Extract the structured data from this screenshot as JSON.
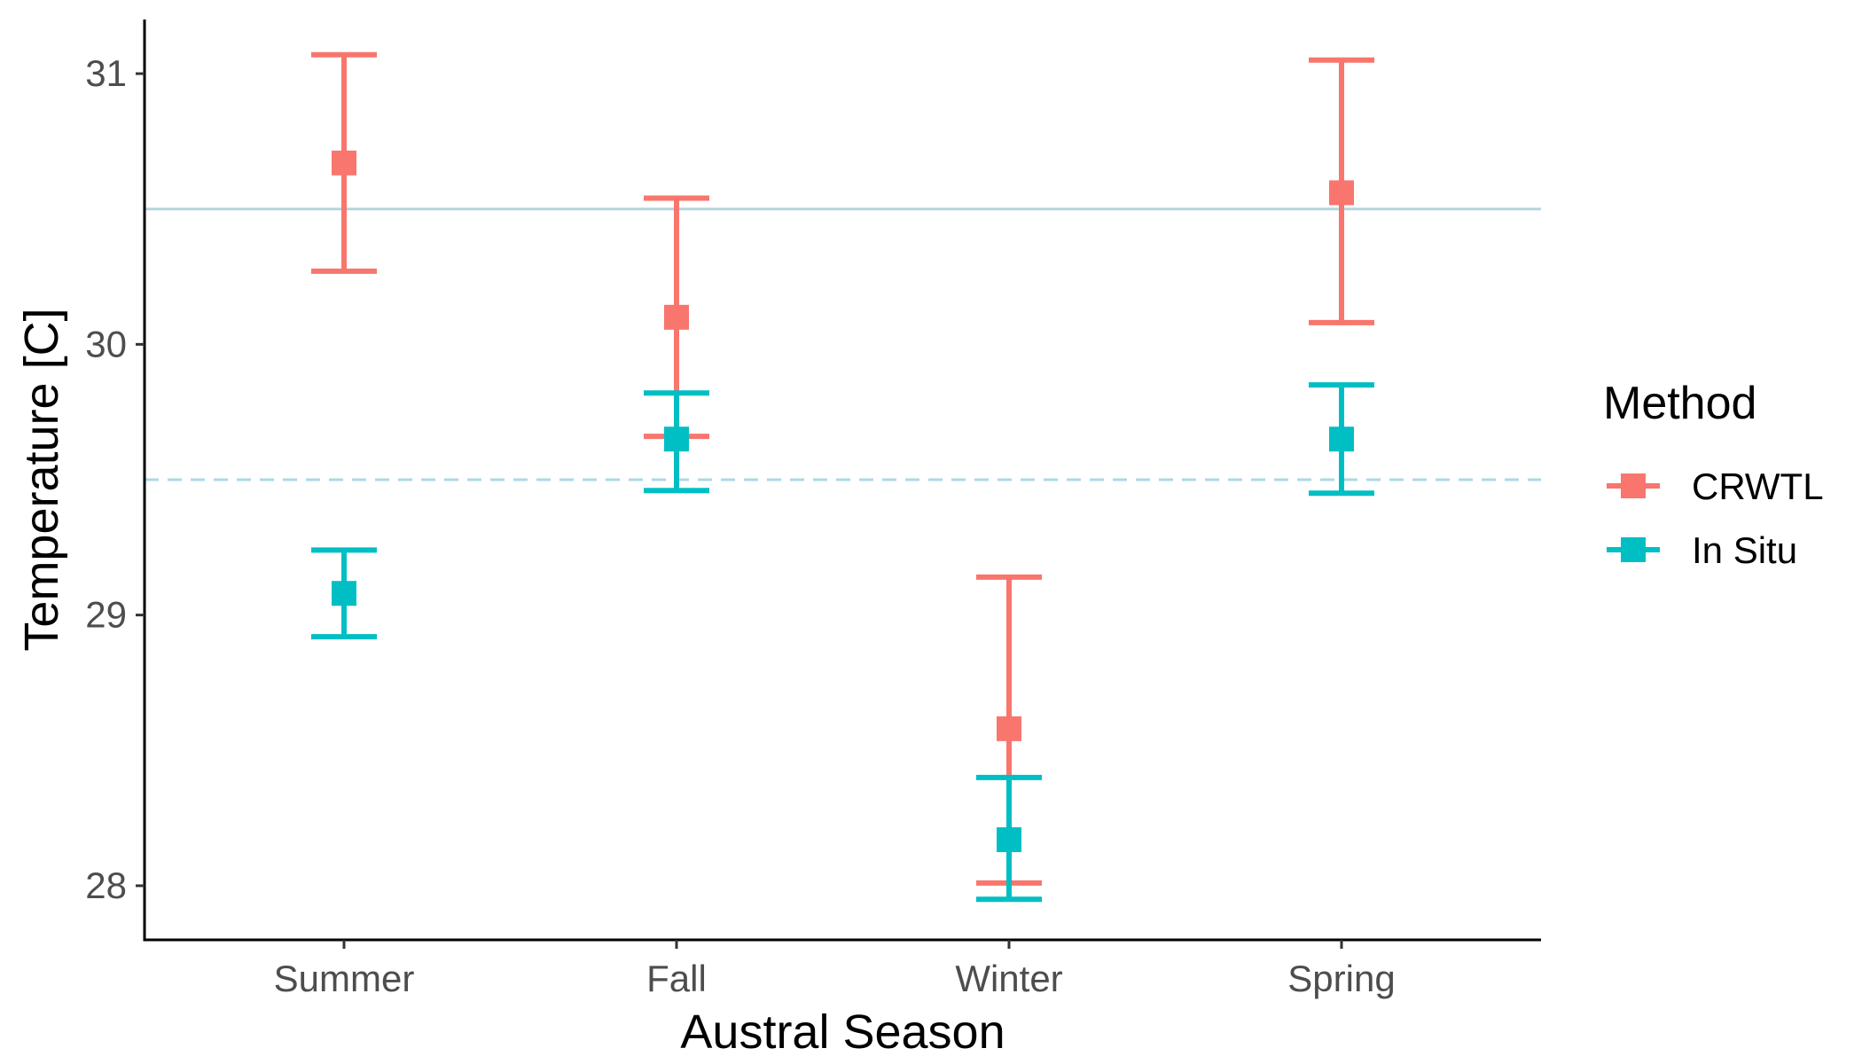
{
  "chart_data": {
    "type": "scatter",
    "xlabel": "Austral Season",
    "ylabel": "Temperature [C]",
    "categories": [
      "Summer",
      "Fall",
      "Winter",
      "Spring"
    ],
    "ylim": [
      27.8,
      31.2
    ],
    "yticks": [
      28,
      29,
      30,
      31
    ],
    "grid": false,
    "legend": {
      "title": "Method",
      "position": "right"
    },
    "reference_lines": [
      {
        "y": 30.5,
        "style": "solid",
        "color": "#b4d6df"
      },
      {
        "y": 29.5,
        "style": "dashed",
        "color": "#add8e6"
      }
    ],
    "series": [
      {
        "name": "CRWTL",
        "color": "#f8766d",
        "values": [
          30.67,
          30.1,
          28.58,
          30.56
        ],
        "lower": [
          30.27,
          29.66,
          28.01,
          30.08
        ],
        "upper": [
          31.07,
          30.54,
          29.14,
          31.05
        ]
      },
      {
        "name": "In Situ",
        "color": "#00bfc4",
        "values": [
          29.08,
          29.65,
          28.17,
          29.65
        ],
        "lower": [
          28.92,
          29.46,
          27.95,
          29.45
        ],
        "upper": [
          29.24,
          29.82,
          28.4,
          29.85
        ]
      }
    ]
  }
}
